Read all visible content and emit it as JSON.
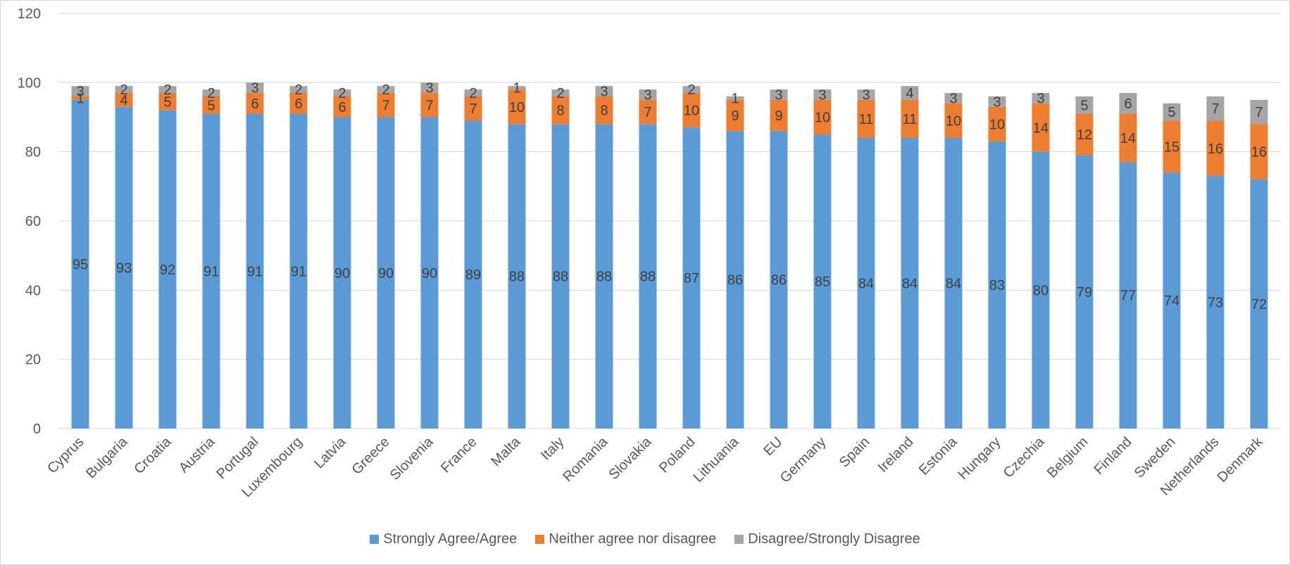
{
  "chart_data": {
    "type": "bar",
    "stacked": true,
    "title": "",
    "xlabel": "",
    "ylabel": "",
    "ylim": [
      0,
      120
    ],
    "yticks": [
      0,
      20,
      40,
      60,
      80,
      100,
      120
    ],
    "grid": true,
    "legend_position": "bottom",
    "categories": [
      "Cyprus",
      "Bulgaria",
      "Croatia",
      "Austria",
      "Portugal",
      "Luxembourg",
      "Latvia",
      "Greece",
      "Slovenia",
      "France",
      "Malta",
      "Italy",
      "Romania",
      "Slovakia",
      "Poland",
      "Lithuania",
      "EU",
      "Germany",
      "Spain",
      "Ireland",
      "Estonia",
      "Hungary",
      "Czechia",
      "Belgium",
      "Finland",
      "Sweden",
      "Netherlands",
      "Denmark"
    ],
    "series": [
      {
        "name": "Strongly Agree/Agree",
        "color": "#5b9bd5",
        "values": [
          95,
          93,
          92,
          91,
          91,
          91,
          90,
          90,
          90,
          89,
          88,
          88,
          88,
          88,
          87,
          86,
          86,
          85,
          84,
          84,
          84,
          83,
          80,
          79,
          77,
          74,
          73,
          72
        ]
      },
      {
        "name": "Neither agree nor disagree",
        "color": "#ed7d31",
        "values": [
          1,
          4,
          5,
          5,
          6,
          6,
          6,
          7,
          7,
          7,
          10,
          8,
          8,
          7,
          10,
          9,
          9,
          10,
          11,
          11,
          10,
          10,
          14,
          12,
          14,
          15,
          16,
          16
        ]
      },
      {
        "name": "Disagree/Strongly Disagree",
        "color": "#a5a5a5",
        "values": [
          3,
          2,
          2,
          2,
          3,
          2,
          2,
          2,
          3,
          2,
          1,
          2,
          3,
          3,
          2,
          1,
          3,
          3,
          3,
          4,
          3,
          3,
          3,
          5,
          6,
          5,
          7,
          7
        ]
      }
    ]
  }
}
